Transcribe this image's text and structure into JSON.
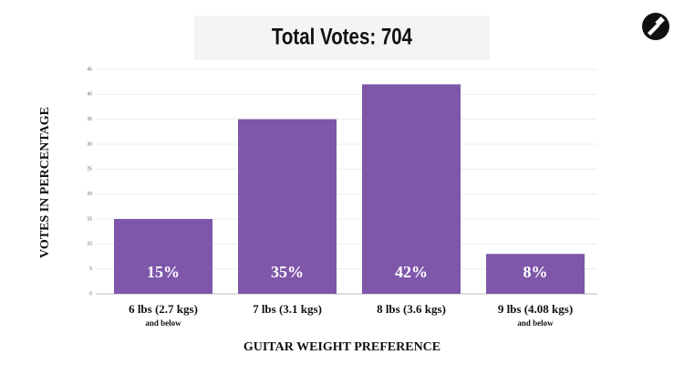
{
  "chart_data": {
    "type": "bar",
    "title": "Total Votes: 704",
    "categories": [
      "6 lbs (2.7 kgs)",
      "7 lbs (3.1 kgs)",
      "8 lbs (3.6 kgs)",
      "9 lbs (4.08 kgs)"
    ],
    "category_notes": [
      "and below",
      null,
      null,
      "and below"
    ],
    "values": [
      15,
      35,
      42,
      8
    ],
    "value_labels": [
      "15%",
      "35%",
      "42%",
      "8%"
    ],
    "color": "#7e57aa",
    "ylim": [
      0,
      45
    ],
    "yticks": [
      0,
      5,
      10,
      15,
      20,
      25,
      30,
      35,
      40,
      45
    ],
    "grid": true,
    "x_label": "GUITAR WEIGHT PREFERENCE",
    "y_label": "VOTES IN PERCENTAGE"
  }
}
